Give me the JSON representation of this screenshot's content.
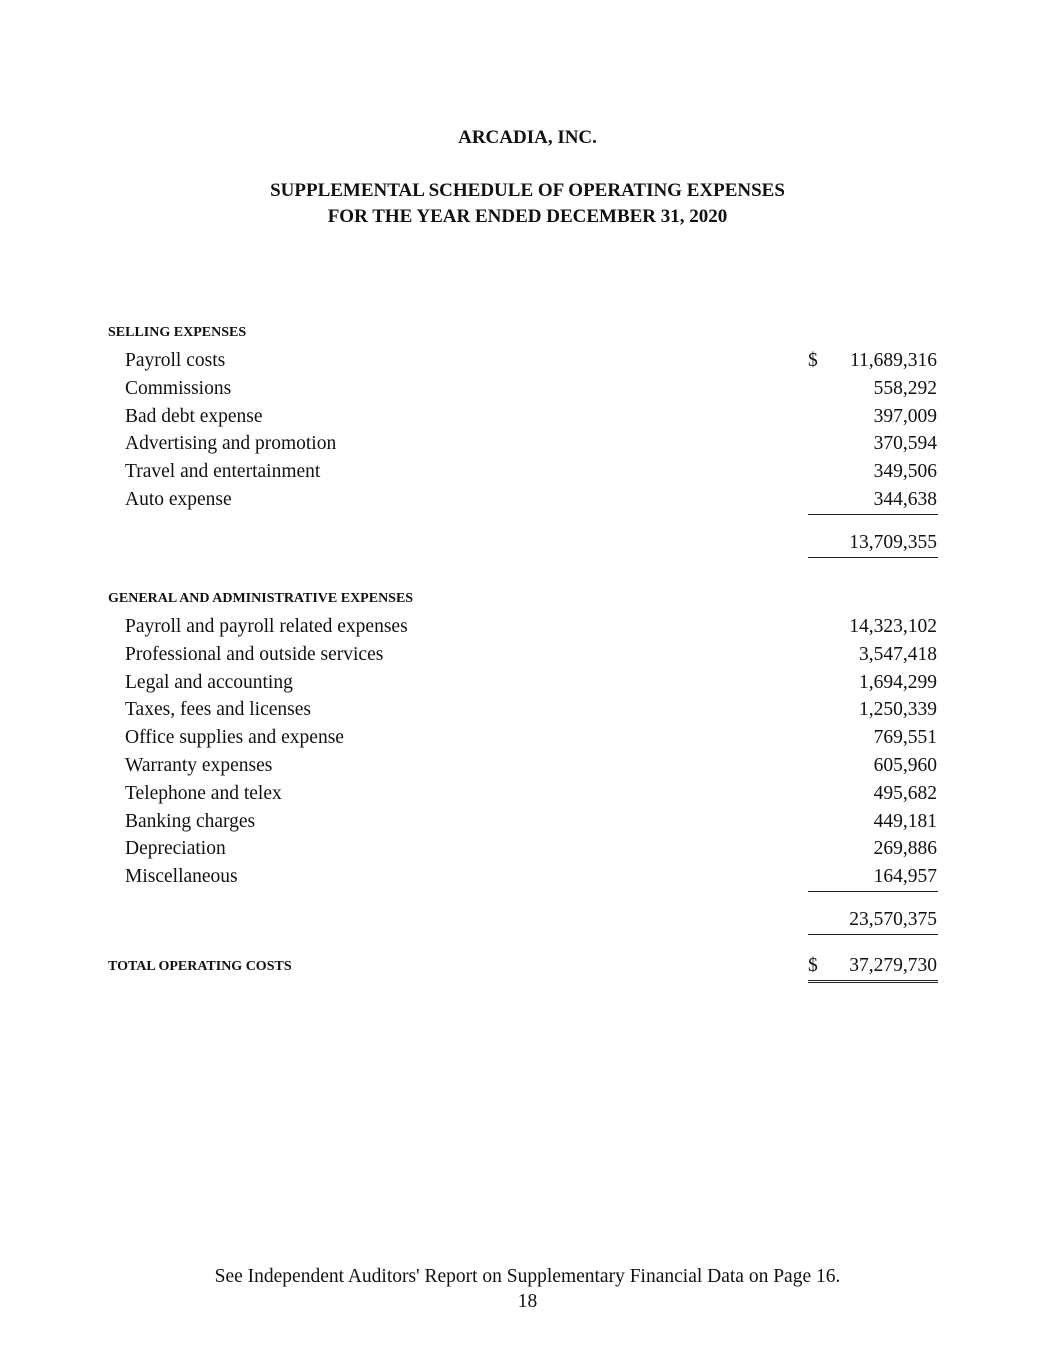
{
  "header": {
    "company": "ARCADIA, INC.",
    "title_line1": "SUPPLEMENTAL SCHEDULE OF OPERATING EXPENSES",
    "title_line2": "FOR THE YEAR ENDED DECEMBER 31, 2020"
  },
  "selling": {
    "heading": "SELLING EXPENSES",
    "currency": "$",
    "items": [
      {
        "label": "Payroll costs",
        "amount": "11,689,316"
      },
      {
        "label": "Commissions",
        "amount": "558,292"
      },
      {
        "label": "Bad debt expense",
        "amount": "397,009"
      },
      {
        "label": "Advertising and promotion",
        "amount": "370,594"
      },
      {
        "label": "Travel and entertainment",
        "amount": "349,506"
      },
      {
        "label": "Auto expense",
        "amount": "344,638"
      }
    ],
    "subtotal": "13,709,355"
  },
  "ga": {
    "heading": "GENERAL AND ADMINISTRATIVE EXPENSES",
    "items": [
      {
        "label": "Payroll and payroll related expenses",
        "amount": "14,323,102"
      },
      {
        "label": "Professional and outside services",
        "amount": "3,547,418"
      },
      {
        "label": "Legal and accounting",
        "amount": "1,694,299"
      },
      {
        "label": "Taxes, fees and licenses",
        "amount": "1,250,339"
      },
      {
        "label": "Office supplies and expense",
        "amount": "769,551"
      },
      {
        "label": "Warranty expenses",
        "amount": "605,960"
      },
      {
        "label": "Telephone and telex",
        "amount": "495,682"
      },
      {
        "label": "Banking charges",
        "amount": "449,181"
      },
      {
        "label": "Depreciation",
        "amount": "269,886"
      },
      {
        "label": "Miscellaneous",
        "amount": "164,957"
      }
    ],
    "subtotal": "23,570,375"
  },
  "total": {
    "label": "TOTAL OPERATING COSTS",
    "currency": "$",
    "amount": "37,279,730"
  },
  "footer": {
    "note": "See Independent Auditors' Report on Supplementary Financial Data on Page 16.",
    "page_number": "18"
  }
}
